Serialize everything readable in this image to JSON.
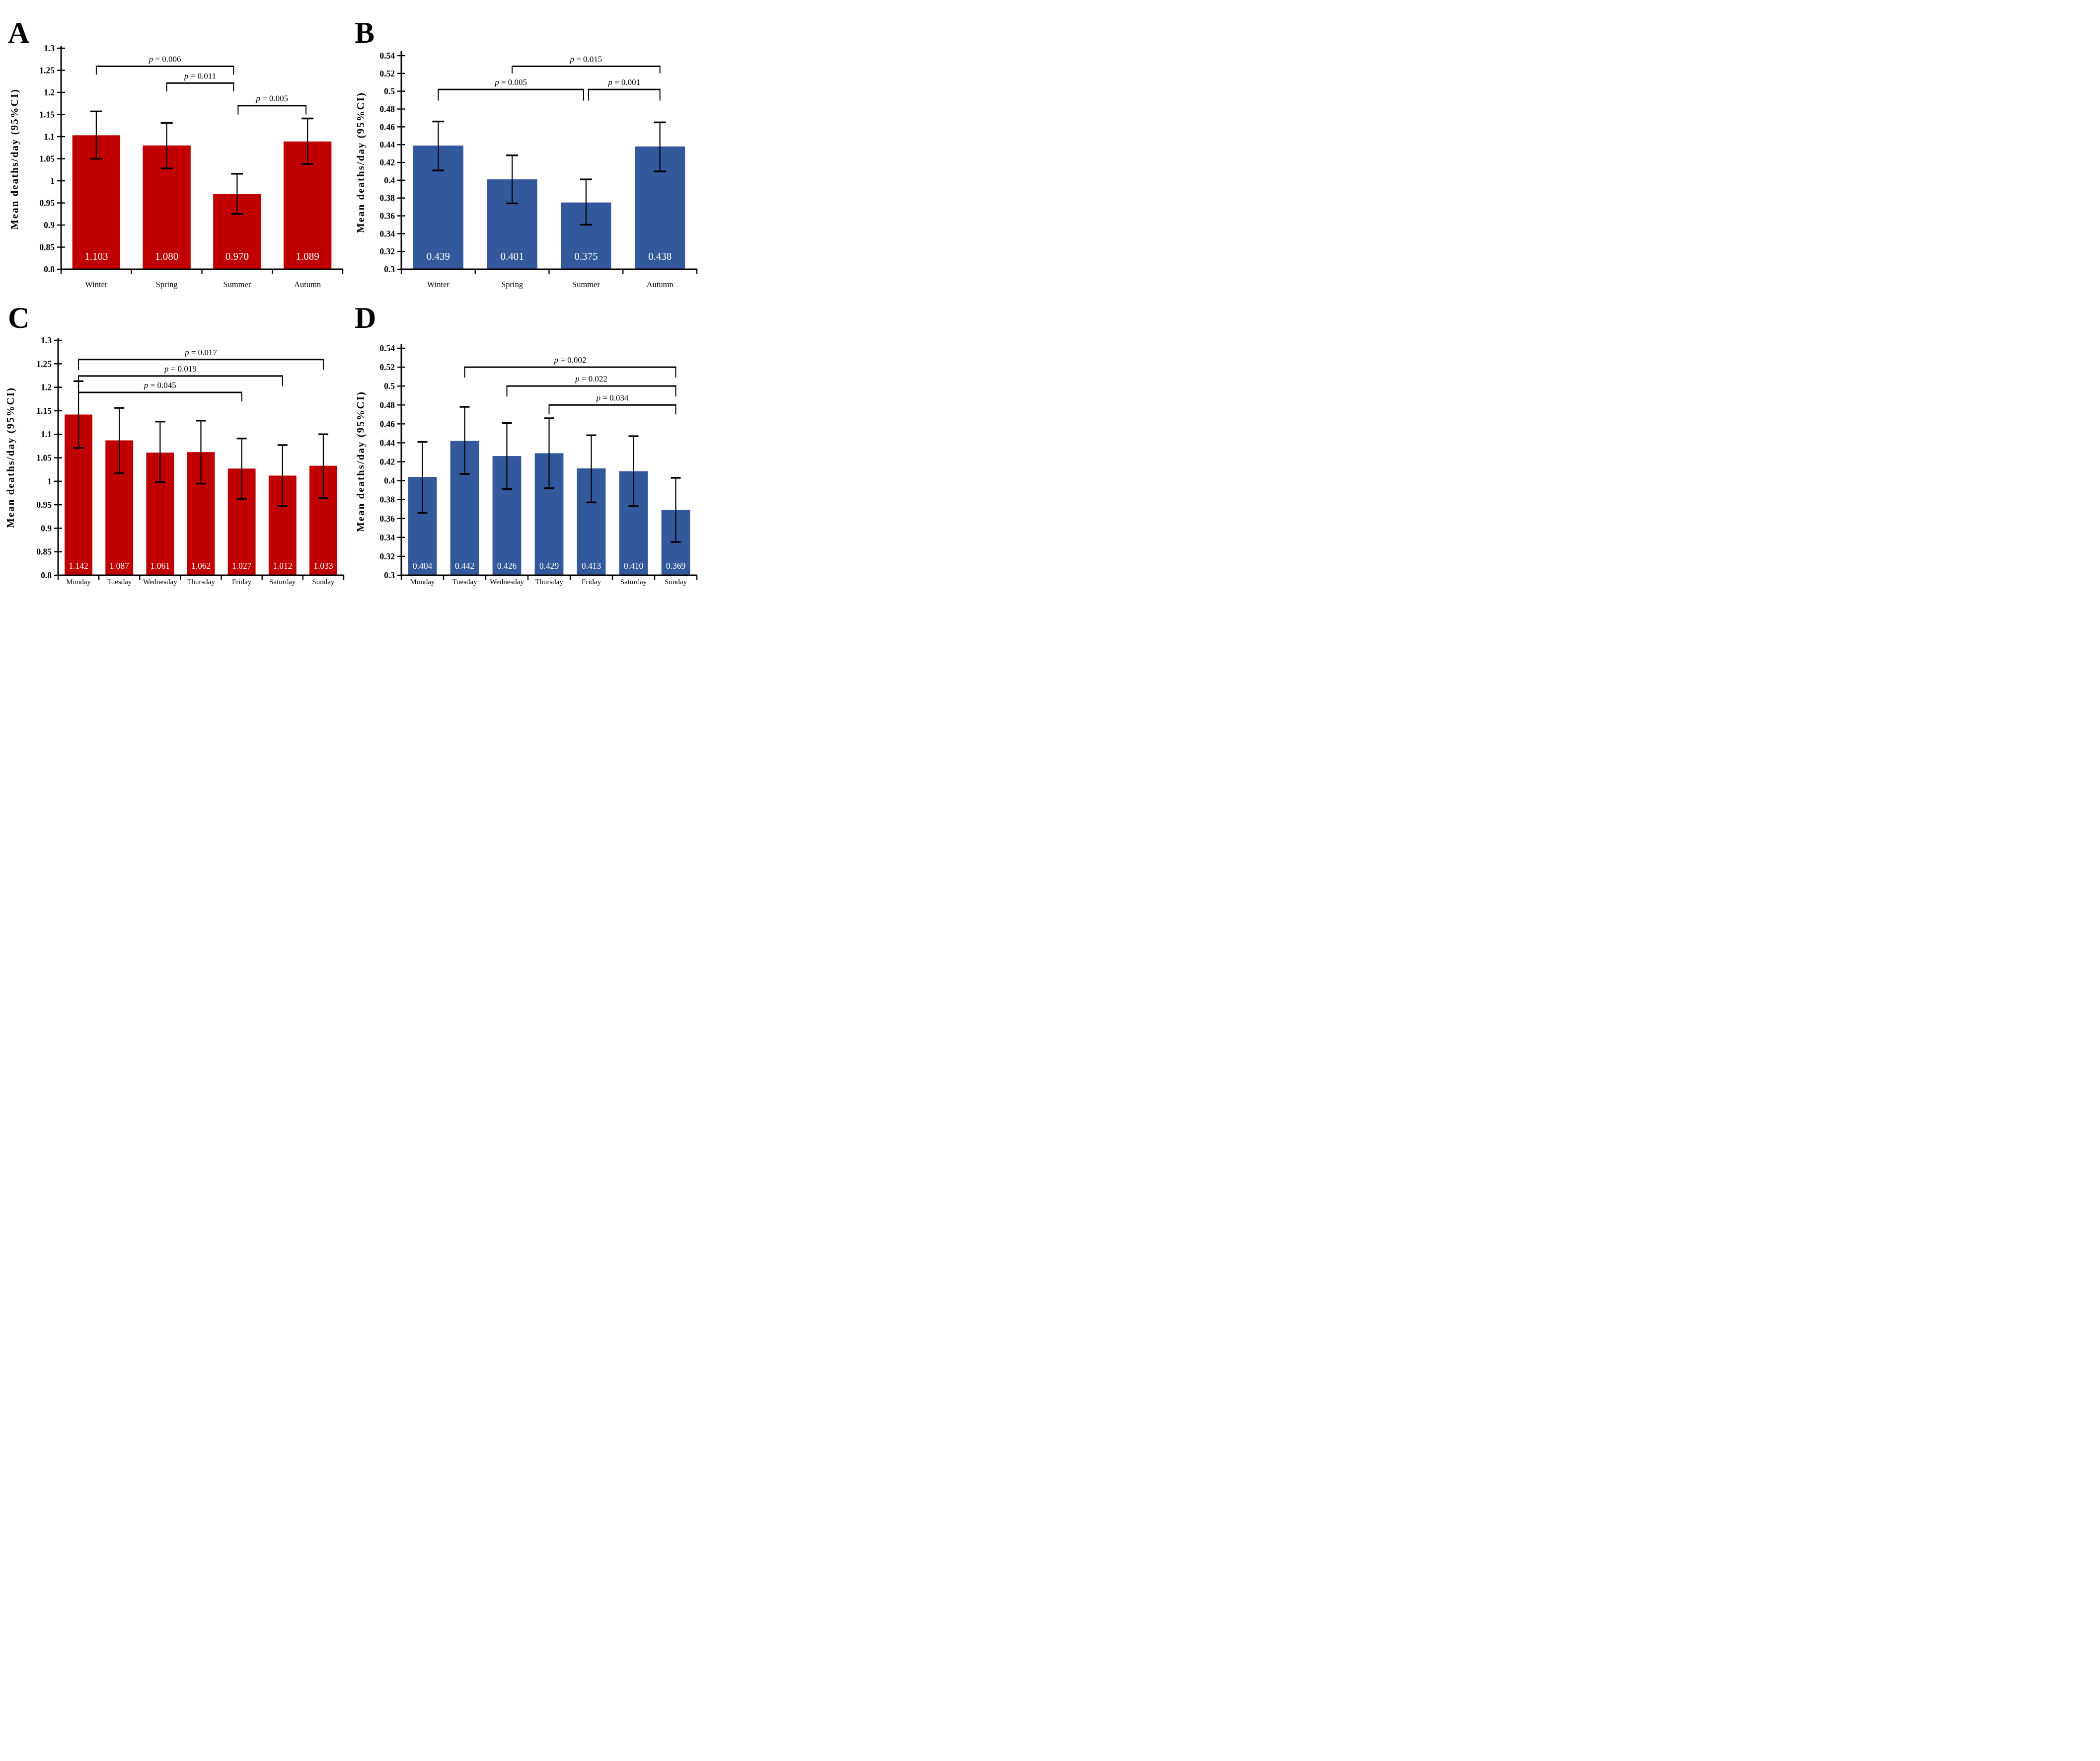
{
  "figure": {
    "y_axis_label": "Mean deaths/day (95%CI)",
    "colors": {
      "red": "#C00000",
      "blue": "#33589B",
      "axis": "#000000",
      "bar_value_text": "#FFFFFF"
    }
  },
  "chart_data": [
    {
      "id": "A",
      "letter": "A",
      "type": "bar",
      "bar_color_key": "red",
      "categories": [
        "Winter",
        "Spring",
        "Summer",
        "Autumn"
      ],
      "values": [
        1.103,
        1.08,
        0.97,
        1.089
      ],
      "value_labels": [
        "1.103",
        "1.080",
        "0.970",
        "1.089"
      ],
      "ci_low": [
        1.05,
        1.028,
        0.925,
        1.038
      ],
      "ci_high": [
        1.157,
        1.131,
        1.016,
        1.141
      ],
      "ylabel": "Mean deaths/day (95%CI)",
      "ylim": [
        0.8,
        1.3
      ],
      "ytick_values": [
        1.3,
        1.25,
        1.2,
        1.15,
        1.1,
        1.05,
        1.0,
        0.95,
        0.9,
        0.85,
        0.8
      ],
      "ytick_labels": [
        "1.3",
        "1.25",
        "1.2",
        "1.15",
        "1.1",
        "1.05",
        "1",
        "0.95",
        "0.9",
        "0.85",
        "0.8"
      ],
      "grid": false,
      "legend": null,
      "brackets": [
        {
          "from": 0,
          "to": 2,
          "label": "p = 0.006",
          "line": 1.259,
          "tip": 1.24,
          "dx1": 0,
          "dx2": -7
        },
        {
          "from": 1,
          "to": 2,
          "label": "p = 0.011",
          "line": 1.221,
          "tip": 1.202,
          "dx1": 0,
          "dx2": -7
        },
        {
          "from": 2,
          "to": 3,
          "label": "p = 0.005",
          "line": 1.17,
          "tip": 1.15,
          "dx1": 2,
          "dx2": -3
        }
      ]
    },
    {
      "id": "B",
      "letter": "B",
      "type": "bar",
      "bar_color_key": "blue",
      "categories": [
        "Winter",
        "Spring",
        "Summer",
        "Autumn"
      ],
      "values": [
        0.439,
        0.401,
        0.375,
        0.438
      ],
      "value_labels": [
        "0.439",
        "0.401",
        "0.375",
        "0.438"
      ],
      "ci_low": [
        0.411,
        0.374,
        0.35,
        0.41
      ],
      "ci_high": [
        0.466,
        0.428,
        0.401,
        0.465
      ],
      "ylabel": "Mean deaths/day (95%CI)",
      "ylim": [
        0.3,
        0.54
      ],
      "ytick_values": [
        0.54,
        0.52,
        0.5,
        0.48,
        0.46,
        0.44,
        0.42,
        0.4,
        0.38,
        0.36,
        0.34,
        0.32,
        0.3
      ],
      "ytick_labels": [
        "0.54",
        "0.52",
        "0.5",
        "0.48",
        "0.46",
        "0.44",
        "0.42",
        "0.4",
        "0.38",
        "0.36",
        "0.34",
        "0.32",
        "0.3"
      ],
      "grid": false,
      "legend": null,
      "brackets": [
        {
          "from": 1,
          "to": 3,
          "label": "p = 0.015",
          "line": 0.528,
          "tip": 0.52,
          "dx1": 0,
          "dx2": 0
        },
        {
          "from": 0,
          "to": 2,
          "label": "p = 0.005",
          "line": 0.502,
          "tip": 0.4895,
          "dx1": 0,
          "dx2": -5
        },
        {
          "from": 2,
          "to": 3,
          "label": "p = 0.001",
          "line": 0.502,
          "tip": 0.4895,
          "dx1": 5,
          "dx2": 0
        }
      ]
    },
    {
      "id": "C",
      "letter": "C",
      "type": "bar",
      "bar_color_key": "red",
      "categories": [
        "Monday",
        "Tuesday",
        "Wednesday",
        "Thursday",
        "Friday",
        "Saturday",
        "Sunday"
      ],
      "values": [
        1.142,
        1.087,
        1.061,
        1.062,
        1.027,
        1.012,
        1.033
      ],
      "value_labels": [
        "1.142",
        "1.087",
        "1.061",
        "1.062",
        "1.027",
        "1.012",
        "1.033"
      ],
      "ci_low": [
        1.071,
        1.017,
        0.998,
        0.995,
        0.962,
        0.947,
        0.964
      ],
      "ci_high": [
        1.213,
        1.156,
        1.127,
        1.129,
        1.091,
        1.077,
        1.1
      ],
      "ylabel": "Mean deaths/day (95%CI)",
      "ylim": [
        0.8,
        1.3
      ],
      "ytick_values": [
        1.3,
        1.25,
        1.2,
        1.15,
        1.1,
        1.05,
        1.0,
        0.95,
        0.9,
        0.85,
        0.8
      ],
      "ytick_labels": [
        "1.3",
        "1.25",
        "1.2",
        "1.15",
        "1.1",
        "1.05",
        "1",
        "0.95",
        "0.9",
        "0.85",
        "0.8"
      ],
      "grid": false,
      "legend": null,
      "brackets": [
        {
          "from": 0,
          "to": 6,
          "label": "p = 0.017",
          "line": 1.259,
          "tip": 1.237,
          "dx1": 0,
          "dx2": 0
        },
        {
          "from": 0,
          "to": 5,
          "label": "p = 0.019",
          "line": 1.224,
          "tip": 1.202,
          "dx1": 0,
          "dx2": 0
        },
        {
          "from": 0,
          "to": 4,
          "label": "p = 0.045",
          "line": 1.189,
          "tip": 1.17,
          "dx1": 0,
          "dx2": 0
        }
      ]
    },
    {
      "id": "D",
      "letter": "D",
      "type": "bar",
      "bar_color_key": "blue",
      "categories": [
        "Monday",
        "Tuesday",
        "Wednesday",
        "Thursday",
        "Friday",
        "Saturday",
        "Sunday"
      ],
      "values": [
        0.404,
        0.442,
        0.426,
        0.429,
        0.413,
        0.41,
        0.369
      ],
      "value_labels": [
        "0.404",
        "0.442",
        "0.426",
        "0.429",
        "0.413",
        "0.410",
        "0.369"
      ],
      "ci_low": [
        0.366,
        0.407,
        0.391,
        0.392,
        0.377,
        0.373,
        0.335
      ],
      "ci_high": [
        0.441,
        0.478,
        0.461,
        0.466,
        0.448,
        0.447,
        0.403
      ],
      "ylabel": "Mean deaths/day (95%CI)",
      "ylim": [
        0.3,
        0.54
      ],
      "ytick_values": [
        0.54,
        0.52,
        0.5,
        0.48,
        0.46,
        0.44,
        0.42,
        0.4,
        0.38,
        0.36,
        0.34,
        0.32,
        0.3
      ],
      "ytick_labels": [
        "0.54",
        "0.52",
        "0.5",
        "0.48",
        "0.46",
        "0.44",
        "0.42",
        "0.4",
        "0.38",
        "0.36",
        "0.34",
        "0.32",
        "0.3"
      ],
      "grid": false,
      "legend": null,
      "brackets": [
        {
          "from": 1,
          "to": 6,
          "label": "p = 0.002",
          "line": 0.52,
          "tip": 0.509,
          "dx1": 0,
          "dx2": 0
        },
        {
          "from": 2,
          "to": 6,
          "label": "p = 0.022",
          "line": 0.5,
          "tip": 0.489,
          "dx1": 0,
          "dx2": 0
        },
        {
          "from": 3,
          "to": 6,
          "label": "p = 0.034",
          "line": 0.48,
          "tip": 0.47,
          "dx1": 0,
          "dx2": 0
        }
      ]
    }
  ]
}
